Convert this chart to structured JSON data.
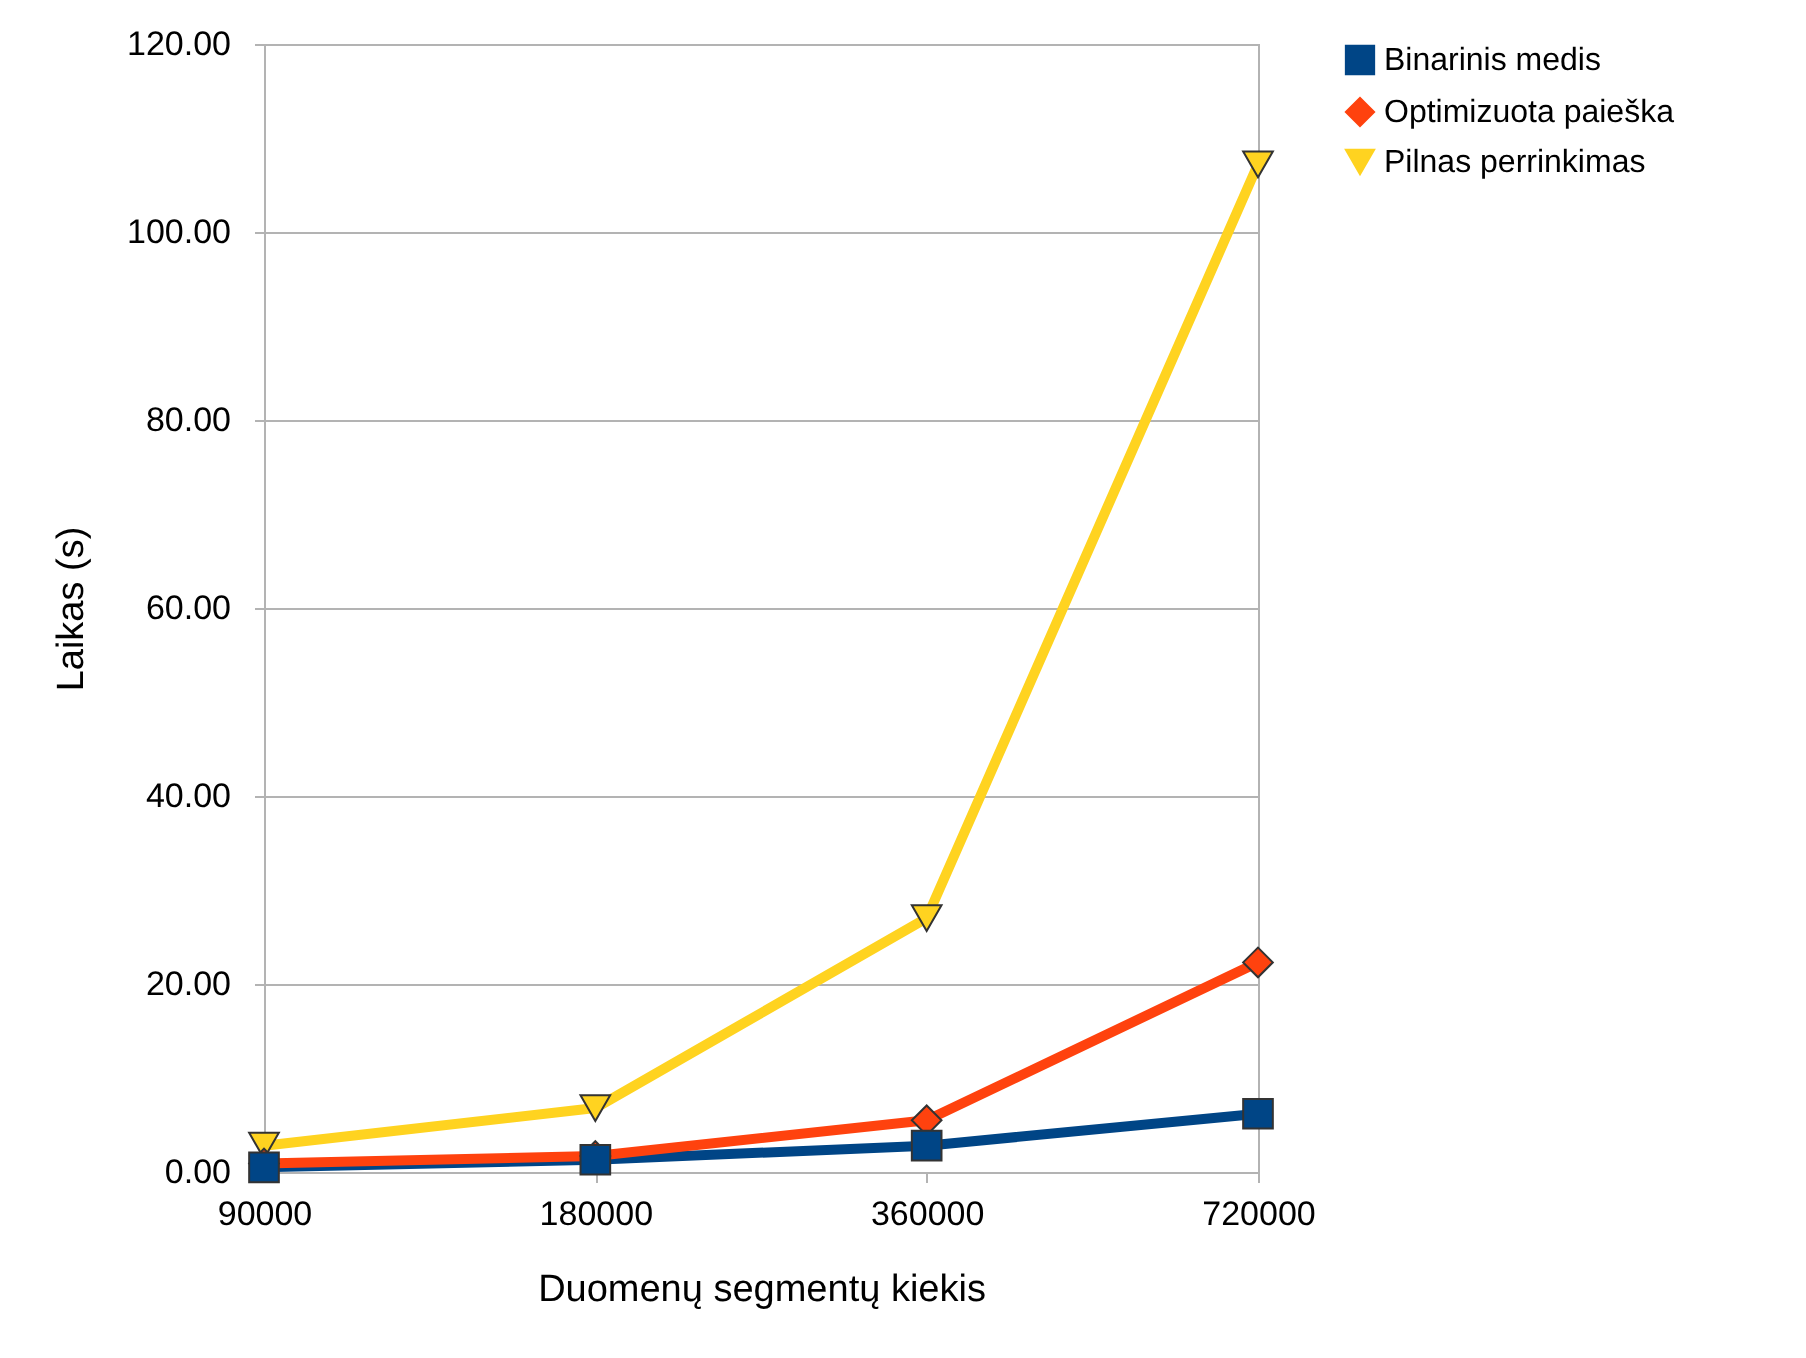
{
  "chart_data": {
    "type": "line",
    "xlabel": "Duomenų segmentų kiekis",
    "ylabel": "Laikas (s)",
    "categories": [
      "90000",
      "180000",
      "360000",
      "720000"
    ],
    "ylim": [
      0,
      120
    ],
    "yticks": [
      {
        "value": 0,
        "label": "0.00"
      },
      {
        "value": 20,
        "label": "20.00"
      },
      {
        "value": 40,
        "label": "40.00"
      },
      {
        "value": 60,
        "label": "60.00"
      },
      {
        "value": 80,
        "label": "80.00"
      },
      {
        "value": 100,
        "label": "100.00"
      },
      {
        "value": 120,
        "label": "120.00"
      }
    ],
    "grid": "y",
    "legend": "right",
    "line_style": "solid",
    "series": [
      {
        "name": "Binarinis medis",
        "color": "#004586",
        "marker": "square",
        "values": [
          0.5,
          1.3,
          2.8,
          6.2
        ]
      },
      {
        "name": "Optimizuota paieška",
        "color": "#ff420e",
        "marker": "diamond",
        "values": [
          0.9,
          1.7,
          5.5,
          22.3
        ]
      },
      {
        "name": "Pilnas perrinkimas",
        "color": "#ffd320",
        "marker": "triangle",
        "values": [
          2.8,
          6.8,
          27.0,
          107.2
        ]
      }
    ]
  }
}
